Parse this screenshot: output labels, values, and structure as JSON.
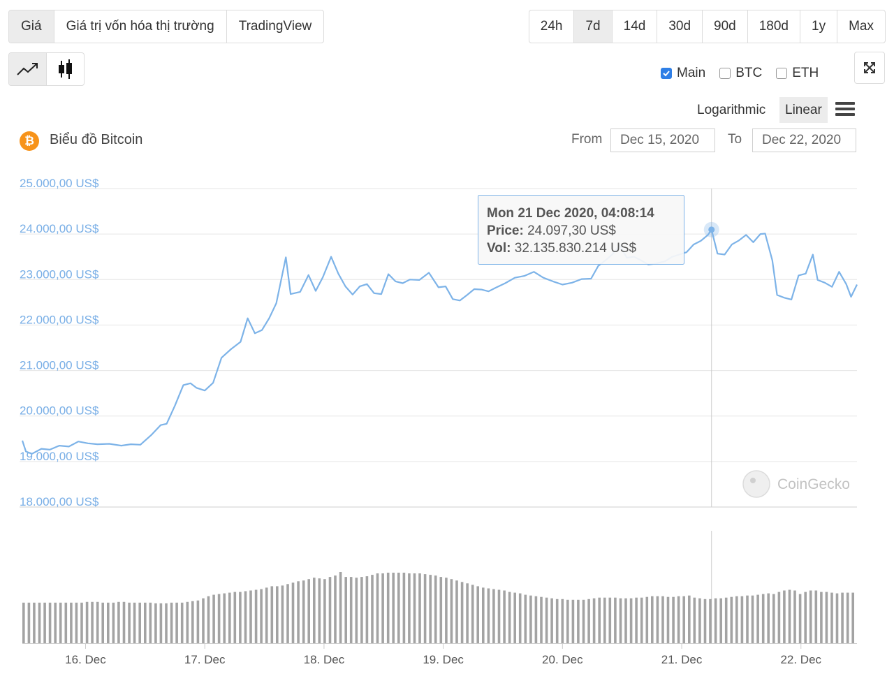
{
  "tabs": [
    {
      "label": "Giá",
      "active": true
    },
    {
      "label": "Giá trị vốn hóa thị trường",
      "active": false
    },
    {
      "label": "TradingView",
      "active": false
    }
  ],
  "ranges": [
    {
      "label": "24h",
      "active": false
    },
    {
      "label": "7d",
      "active": true
    },
    {
      "label": "14d",
      "active": false
    },
    {
      "label": "30d",
      "active": false
    },
    {
      "label": "90d",
      "active": false
    },
    {
      "label": "180d",
      "active": false
    },
    {
      "label": "1y",
      "active": false
    },
    {
      "label": "Max",
      "active": false
    }
  ],
  "series_toggles": [
    {
      "label": "Main",
      "checked": true
    },
    {
      "label": "BTC",
      "checked": false
    },
    {
      "label": "ETH",
      "checked": false
    }
  ],
  "scale": {
    "log_label": "Logarithmic",
    "linear_label": "Linear",
    "selected": "Linear"
  },
  "date_range": {
    "from_label": "From",
    "from_value": "Dec 15, 2020",
    "to_label": "To",
    "to_value": "Dec 22, 2020"
  },
  "colors": {
    "line": "#7db3e8",
    "axis_text": "#78aee6",
    "volume_bar": "#a3a3a3",
    "bitcoin": "#f7931a",
    "accent": "#2f7fe6"
  },
  "watermark": "CoinGecko",
  "chart_data": {
    "type": "line",
    "title": "Biểu đồ Bitcoin",
    "x_unit": "day of December 2020",
    "x_ticks": [
      "16. Dec",
      "17. Dec",
      "18. Dec",
      "19. Dec",
      "20. Dec",
      "21. Dec",
      "22. Dec"
    ],
    "x_tick_values": [
      16,
      17,
      18,
      19,
      20,
      21,
      22
    ],
    "y_ticks": [
      "18.000,00 US$",
      "19.000,00 US$",
      "20.000,00 US$",
      "21.000,00 US$",
      "22.000,00 US$",
      "23.000,00 US$",
      "24.000,00 US$",
      "25.000,00 US$"
    ],
    "y_tick_values": [
      18000,
      19000,
      20000,
      21000,
      22000,
      23000,
      24000,
      25000
    ],
    "ylim": [
      18000,
      25000
    ],
    "xlim": [
      15.47,
      22.47
    ],
    "grid": true,
    "series": [
      {
        "values": [
          [
            15.47,
            19460
          ],
          [
            15.5,
            19220
          ],
          [
            15.55,
            19170
          ],
          [
            15.63,
            19280
          ],
          [
            15.7,
            19260
          ],
          [
            15.78,
            19350
          ],
          [
            15.86,
            19330
          ],
          [
            15.94,
            19440
          ],
          [
            16.02,
            19400
          ],
          [
            16.1,
            19380
          ],
          [
            16.2,
            19390
          ],
          [
            16.3,
            19350
          ],
          [
            16.38,
            19380
          ],
          [
            16.46,
            19370
          ],
          [
            16.55,
            19580
          ],
          [
            16.63,
            19800
          ],
          [
            16.68,
            19830
          ],
          [
            16.75,
            20230
          ],
          [
            16.82,
            20680
          ],
          [
            16.88,
            20720
          ],
          [
            16.93,
            20620
          ],
          [
            17.0,
            20560
          ],
          [
            17.07,
            20730
          ],
          [
            17.14,
            21280
          ],
          [
            17.22,
            21470
          ],
          [
            17.3,
            21630
          ],
          [
            17.36,
            22150
          ],
          [
            17.42,
            21820
          ],
          [
            17.48,
            21890
          ],
          [
            17.54,
            22150
          ],
          [
            17.6,
            22480
          ],
          [
            17.68,
            23490
          ],
          [
            17.72,
            22680
          ],
          [
            17.8,
            22730
          ],
          [
            17.87,
            23100
          ],
          [
            17.93,
            22750
          ],
          [
            17.99,
            23050
          ],
          [
            18.06,
            23500
          ],
          [
            18.12,
            23130
          ],
          [
            18.18,
            22850
          ],
          [
            18.24,
            22670
          ],
          [
            18.3,
            22850
          ],
          [
            18.36,
            22900
          ],
          [
            18.42,
            22700
          ],
          [
            18.48,
            22680
          ],
          [
            18.54,
            23120
          ],
          [
            18.6,
            22960
          ],
          [
            18.66,
            22920
          ],
          [
            18.72,
            23000
          ],
          [
            18.8,
            22990
          ],
          [
            18.88,
            23150
          ],
          [
            18.96,
            22830
          ],
          [
            19.02,
            22850
          ],
          [
            19.08,
            22570
          ],
          [
            19.14,
            22540
          ],
          [
            19.2,
            22660
          ],
          [
            19.26,
            22790
          ],
          [
            19.32,
            22780
          ],
          [
            19.38,
            22740
          ],
          [
            19.44,
            22820
          ],
          [
            19.52,
            22920
          ],
          [
            19.6,
            23040
          ],
          [
            19.68,
            23080
          ],
          [
            19.76,
            23170
          ],
          [
            19.84,
            23040
          ],
          [
            19.92,
            22960
          ],
          [
            20.0,
            22890
          ],
          [
            20.08,
            22930
          ],
          [
            20.16,
            23010
          ],
          [
            20.24,
            23020
          ],
          [
            20.3,
            23300
          ],
          [
            20.36,
            23420
          ],
          [
            20.42,
            23560
          ],
          [
            20.48,
            23750
          ],
          [
            20.54,
            23480
          ],
          [
            20.6,
            23500
          ],
          [
            20.66,
            23420
          ],
          [
            20.72,
            23330
          ],
          [
            20.78,
            23350
          ],
          [
            20.86,
            23400
          ],
          [
            20.92,
            23500
          ],
          [
            20.98,
            23550
          ],
          [
            21.04,
            23600
          ],
          [
            21.1,
            23770
          ],
          [
            21.16,
            23850
          ],
          [
            21.22,
            23980
          ],
          [
            21.25,
            24097
          ],
          [
            21.3,
            23570
          ],
          [
            21.36,
            23550
          ],
          [
            21.42,
            23770
          ],
          [
            21.48,
            23860
          ],
          [
            21.54,
            23980
          ],
          [
            21.6,
            23820
          ],
          [
            21.66,
            24000
          ],
          [
            21.7,
            24010
          ],
          [
            21.76,
            23420
          ],
          [
            21.8,
            22660
          ],
          [
            21.86,
            22600
          ],
          [
            21.92,
            22560
          ],
          [
            21.98,
            23090
          ],
          [
            22.04,
            23130
          ],
          [
            22.1,
            23550
          ],
          [
            22.14,
            22990
          ],
          [
            22.2,
            22930
          ],
          [
            22.26,
            22840
          ],
          [
            22.32,
            23170
          ],
          [
            22.38,
            22900
          ],
          [
            22.42,
            22620
          ],
          [
            22.47,
            22890
          ]
        ]
      }
    ],
    "volume": {
      "type": "bar",
      "relative_heights": [
        0.57,
        0.57,
        0.57,
        0.57,
        0.57,
        0.57,
        0.57,
        0.57,
        0.57,
        0.57,
        0.57,
        0.57,
        0.58,
        0.58,
        0.58,
        0.57,
        0.57,
        0.57,
        0.58,
        0.58,
        0.57,
        0.57,
        0.57,
        0.57,
        0.57,
        0.56,
        0.56,
        0.56,
        0.57,
        0.57,
        0.57,
        0.58,
        0.59,
        0.6,
        0.63,
        0.66,
        0.68,
        0.69,
        0.7,
        0.71,
        0.72,
        0.72,
        0.73,
        0.74,
        0.75,
        0.76,
        0.78,
        0.8,
        0.8,
        0.81,
        0.83,
        0.85,
        0.87,
        0.88,
        0.9,
        0.92,
        0.91,
        0.9,
        0.93,
        0.95,
        1.0,
        0.93,
        0.93,
        0.92,
        0.93,
        0.94,
        0.96,
        0.98,
        0.98,
        0.99,
        0.99,
        0.99,
        0.99,
        0.98,
        0.98,
        0.98,
        0.97,
        0.96,
        0.95,
        0.93,
        0.92,
        0.9,
        0.88,
        0.86,
        0.84,
        0.82,
        0.8,
        0.78,
        0.77,
        0.76,
        0.75,
        0.74,
        0.72,
        0.71,
        0.7,
        0.68,
        0.67,
        0.66,
        0.65,
        0.64,
        0.63,
        0.62,
        0.62,
        0.61,
        0.61,
        0.61,
        0.61,
        0.62,
        0.63,
        0.64,
        0.64,
        0.64,
        0.64,
        0.63,
        0.63,
        0.63,
        0.64,
        0.64,
        0.65,
        0.66,
        0.66,
        0.66,
        0.65,
        0.65,
        0.66,
        0.66,
        0.67,
        0.64,
        0.63,
        0.62,
        0.62,
        0.63,
        0.63,
        0.64,
        0.65,
        0.66,
        0.66,
        0.67,
        0.67,
        0.68,
        0.69,
        0.7,
        0.69,
        0.72,
        0.74,
        0.75,
        0.74,
        0.69,
        0.72,
        0.74,
        0.74,
        0.72,
        0.72,
        0.71,
        0.7,
        0.71,
        0.71,
        0.71
      ]
    },
    "tooltip": {
      "title": "Mon 21 Dec 2020, 04:08:14",
      "price_label": "Price:",
      "price_value": "24.097,30 US$",
      "vol_label": "Vol:",
      "vol_value": "32.135.830.214 US$",
      "x": 21.25,
      "y": 24097
    }
  }
}
